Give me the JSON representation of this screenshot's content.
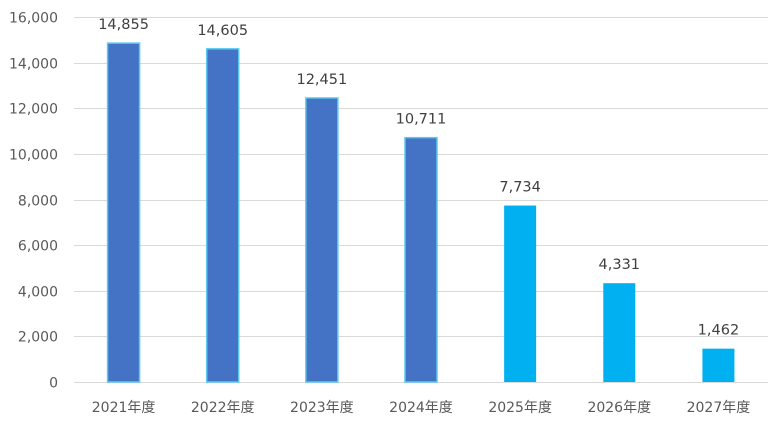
{
  "chart_data": {
    "type": "bar",
    "categories": [
      "2021年度",
      "2022年度",
      "2023年度",
      "2024年度",
      "2025年度",
      "2026年度",
      "2027年度"
    ],
    "values": [
      14855,
      14605,
      12451,
      10711,
      7734,
      4331,
      1462
    ],
    "value_labels": [
      "14,855",
      "14,605",
      "12,451",
      "10,711",
      "7,734",
      "4,331",
      "1,462"
    ],
    "bar_colors": [
      "#4472c4",
      "#4472c4",
      "#4472c4",
      "#4472c4",
      "#00b0f0",
      "#00b0f0",
      "#00b0f0"
    ],
    "ylim": [
      0,
      16000
    ],
    "y_ticks": [
      0,
      2000,
      4000,
      6000,
      8000,
      10000,
      12000,
      14000,
      16000
    ],
    "y_tick_labels": [
      "0",
      "2,000",
      "4,000",
      "6,000",
      "8,000",
      "10,000",
      "12,000",
      "14,000",
      "16,000"
    ],
    "grid": true,
    "legend": "none",
    "title": "",
    "xlabel": "",
    "ylabel": ""
  }
}
